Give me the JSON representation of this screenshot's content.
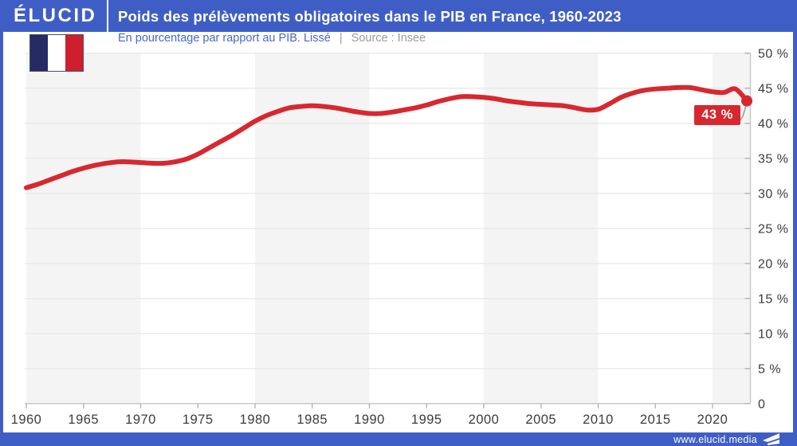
{
  "header": {
    "logo": "ÉLUCID",
    "title": "Poids des prélèvements obligatoires dans le PIB en France, 1960-2023"
  },
  "subtitle": {
    "measure": "En pourcentage par rapport au PIB. Lissé",
    "divider": "|",
    "source": "Source : Insee"
  },
  "flag": {
    "semantic": "french-flag",
    "blue": "#252b63",
    "white": "#ffffff",
    "red": "#d01f2c"
  },
  "annotation": {
    "end_label": "43 %"
  },
  "footer": {
    "url": "www.elucid.media"
  },
  "colors": {
    "accent_blue": "#3f5ec5",
    "series_red": "#d7282f",
    "band_gray": "#f4f4f4",
    "grid_gray": "#e9e9e9",
    "axis_gray": "#c9c9c9",
    "tick_gray": "#b5b5b5",
    "axis_text": "#3c3c3c",
    "callout_gray": "#9a9a9a"
  },
  "chart_data": {
    "type": "line",
    "title": "Poids des prélèvements obligatoires dans le PIB en France, 1960-2023",
    "ylabel": "En pourcentage par rapport au PIB (lissé)",
    "source": "Insee",
    "x": [
      1960,
      1961,
      1962,
      1963,
      1964,
      1965,
      1966,
      1967,
      1968,
      1969,
      1970,
      1971,
      1972,
      1973,
      1974,
      1975,
      1976,
      1977,
      1978,
      1979,
      1980,
      1981,
      1982,
      1983,
      1984,
      1985,
      1986,
      1987,
      1988,
      1989,
      1990,
      1991,
      1992,
      1993,
      1994,
      1995,
      1996,
      1997,
      1998,
      1999,
      2000,
      2001,
      2002,
      2003,
      2004,
      2005,
      2006,
      2007,
      2008,
      2009,
      2010,
      2011,
      2012,
      2013,
      2014,
      2015,
      2016,
      2017,
      2018,
      2019,
      2020,
      2021,
      2022,
      2023
    ],
    "values": [
      30.8,
      31.3,
      31.9,
      32.5,
      33.1,
      33.6,
      34.0,
      34.3,
      34.5,
      34.5,
      34.4,
      34.3,
      34.3,
      34.5,
      34.9,
      35.6,
      36.5,
      37.4,
      38.3,
      39.3,
      40.3,
      41.1,
      41.7,
      42.2,
      42.4,
      42.5,
      42.4,
      42.2,
      41.9,
      41.6,
      41.4,
      41.4,
      41.6,
      41.9,
      42.2,
      42.6,
      43.1,
      43.5,
      43.8,
      43.8,
      43.7,
      43.5,
      43.2,
      43.0,
      42.8,
      42.7,
      42.6,
      42.5,
      42.2,
      41.9,
      42.0,
      42.8,
      43.7,
      44.3,
      44.7,
      44.9,
      45.0,
      45.1,
      45.1,
      44.8,
      44.5,
      44.4,
      44.9,
      43.2
    ],
    "x_ticks": [
      1960,
      1965,
      1970,
      1975,
      1980,
      1985,
      1990,
      1995,
      2000,
      2005,
      2010,
      2015,
      2020
    ],
    "x_tick_labels": [
      "1960",
      "1965",
      "1970",
      "1975",
      "1980",
      "1985",
      "1990",
      "1995",
      "2000",
      "2005",
      "2010",
      "2015",
      "2020"
    ],
    "y_ticks": [
      0,
      5,
      10,
      15,
      20,
      25,
      30,
      35,
      40,
      45,
      50
    ],
    "y_tick_labels": [
      "0",
      "5 %",
      "10 %",
      "15 %",
      "20 %",
      "25 %",
      "30 %",
      "35 %",
      "40 %",
      "45 %",
      "50 %"
    ],
    "ylim": [
      0,
      50
    ],
    "xlim": [
      1960,
      2023
    ],
    "grid": "horizontal",
    "legend": "none",
    "shaded_decades": [
      [
        1960,
        1970
      ],
      [
        1980,
        1990
      ],
      [
        2000,
        2010
      ],
      [
        2020,
        2023.3
      ]
    ],
    "end_point": {
      "year": 2023,
      "value": 43.2,
      "label": "43 %"
    }
  }
}
